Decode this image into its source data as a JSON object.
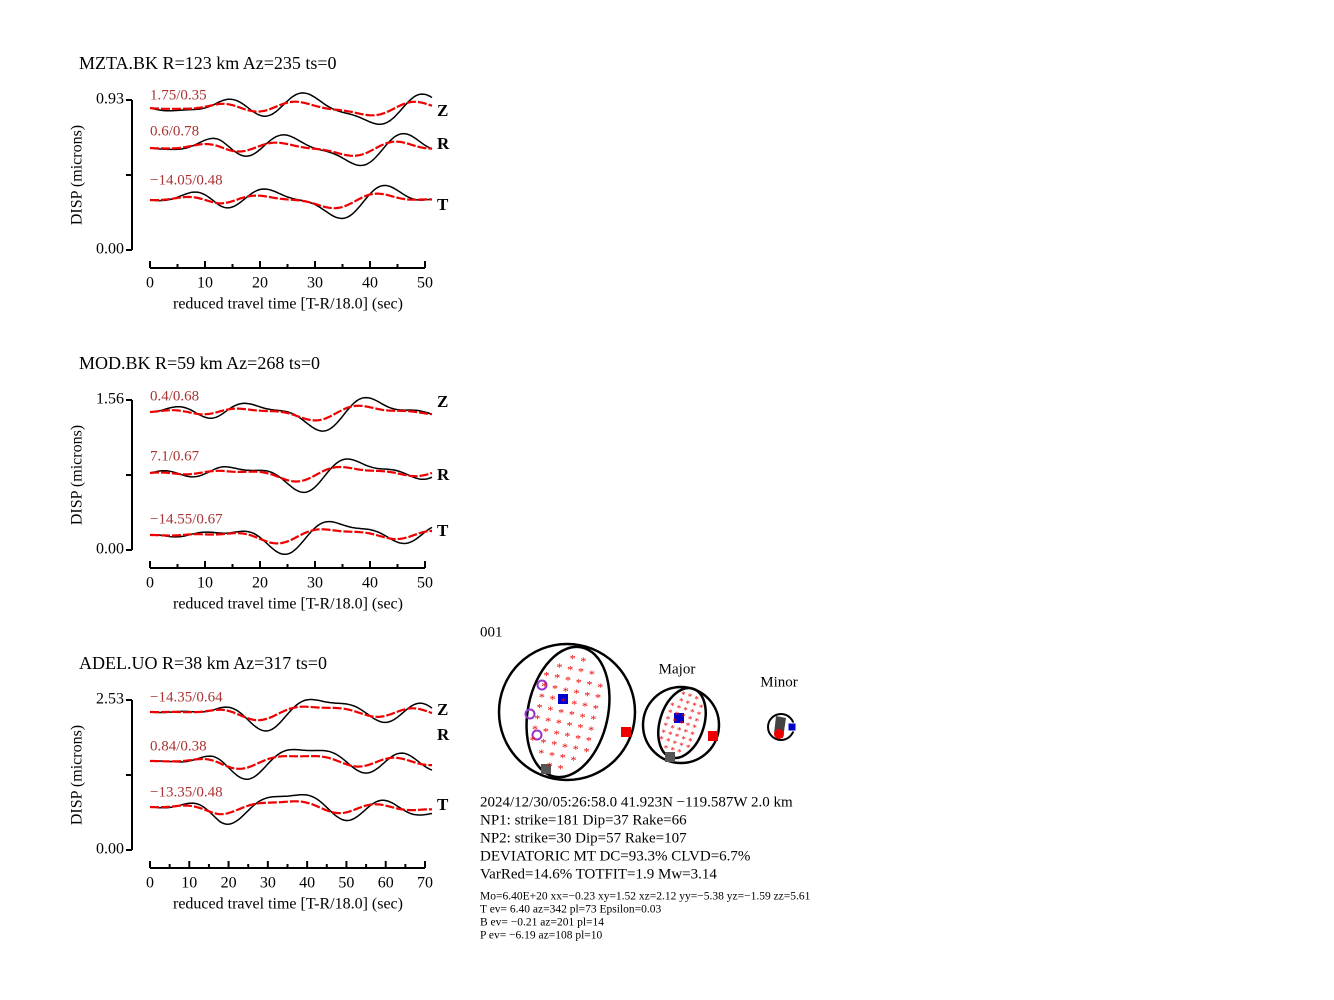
{
  "chart_data": [
    {
      "type": "line",
      "title": "MZTA.BK R=123 km Az=235 ts=0",
      "ylabel": "DISP (microns)",
      "xlabel": "reduced travel time [T-R/18.0] (sec)",
      "ylim": [
        0,
        0.93
      ],
      "yticks": [
        {
          "value": 0,
          "label": "0.00"
        },
        0.93
      ],
      "xlim": [
        0,
        50
      ],
      "xticks": [
        0,
        10,
        20,
        30,
        40,
        50
      ],
      "traces": [
        {
          "component": "Z",
          "label": "1.75/0.35"
        },
        {
          "component": "R",
          "label": "0.6/0.78"
        },
        {
          "component": "T",
          "label": "−14.05/0.48"
        }
      ]
    },
    {
      "type": "line",
      "title": "MOD.BK R=59 km Az=268 ts=0",
      "ylabel": "DISP (microns)",
      "xlabel": "reduced travel time [T-R/18.0] (sec)",
      "ylim": [
        0,
        1.56
      ],
      "yticks": [
        {
          "value": 0,
          "label": "0.00"
        },
        1.56
      ],
      "xlim": [
        0,
        50
      ],
      "xticks": [
        0,
        10,
        20,
        30,
        40,
        50
      ],
      "traces": [
        {
          "component": "Z",
          "label": "0.4/0.68"
        },
        {
          "component": "R",
          "label": "7.1/0.67"
        },
        {
          "component": "T",
          "label": "−14.55/0.67"
        }
      ]
    },
    {
      "type": "line",
      "title": "ADEL.UO R=38 km Az=317 ts=0",
      "ylabel": "DISP (microns)",
      "xlabel": "reduced travel time [T-R/18.0] (sec)",
      "ylim": [
        0,
        2.53
      ],
      "yticks": [
        {
          "value": 0,
          "label": "0.00"
        },
        2.53
      ],
      "xlim": [
        0,
        70
      ],
      "xticks": [
        0,
        10,
        20,
        30,
        40,
        50,
        60,
        70
      ],
      "traces": [
        {
          "component": "Z",
          "label": "−14.35/0.64"
        },
        {
          "component": "R",
          "label": "0.84/0.38"
        },
        {
          "component": "T",
          "label": "−13.35/0.48"
        }
      ]
    }
  ],
  "mechanism": {
    "id": "001",
    "major_label": "Major",
    "minor_label": "Minor",
    "lines": [
      "2024/12/30/05:26:58.0 41.923N −119.587W 2.0 km",
      "NP1: strike=181 Dip=37 Rake=66",
      "NP2: strike=30 Dip=57 Rake=107",
      "DEVIATORIC MT DC=93.3% CLVD=6.7%",
      "VarRed=14.6% TOTFIT=1.9 Mw=3.14"
    ],
    "details": [
      "Mo=6.40E+20 xx=−0.23 xy=1.52 xz=2.12 yy=−5.38 yz=−1.59 zz=5.61",
      "T ev=  6.40 az=342 pl=73 Epsilon=0.03",
      "B ev= −0.21 az=201 pl=14",
      "P ev= −6.19 az=108 pl=10"
    ]
  }
}
